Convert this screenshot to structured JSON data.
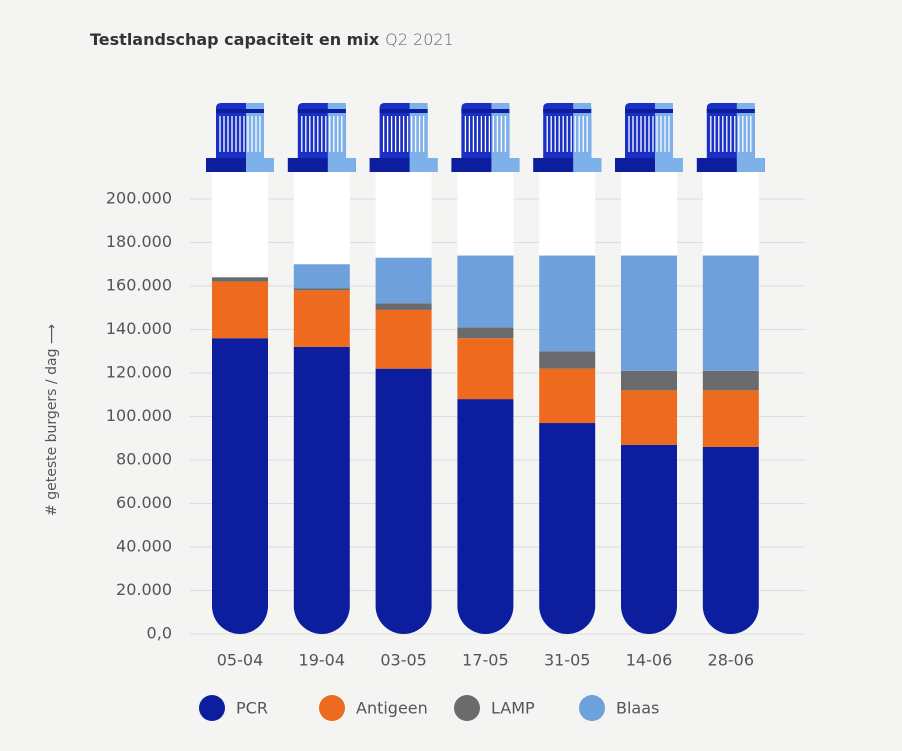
{
  "chart_data": {
    "type": "tube-stacked-bar",
    "title": "Testlandschap capaciteit en mix",
    "subtitle": "Q2 2021",
    "ylabel": "# geteste burgers / dag ⟶",
    "categories": [
      "05-04",
      "19-04",
      "03-05",
      "17-05",
      "31-05",
      "14-06",
      "28-06"
    ],
    "series": [
      {
        "name": "PCR",
        "color": "#0c1d9e",
        "values": [
          136000,
          132000,
          122000,
          108000,
          97000,
          87000,
          86000
        ]
      },
      {
        "name": "Antigeen",
        "color": "#ee6a1e",
        "values": [
          26000,
          26000,
          27000,
          28000,
          25000,
          25000,
          26000
        ]
      },
      {
        "name": "LAMP",
        "color": "#6b6b6d",
        "values": [
          2000,
          1000,
          3000,
          5000,
          8000,
          9000,
          9000
        ]
      },
      {
        "name": "Blaas",
        "color": "#6ea1dc",
        "values": [
          0,
          11000,
          21000,
          33000,
          44000,
          53000,
          53000
        ]
      }
    ],
    "ylim": [
      0,
      200000
    ],
    "yticks": [
      {
        "value": 0,
        "label": "0,0"
      },
      {
        "value": 20000,
        "label": "20.000"
      },
      {
        "value": 40000,
        "label": "40.000"
      },
      {
        "value": 60000,
        "label": "60.000"
      },
      {
        "value": 80000,
        "label": "80.000"
      },
      {
        "value": 100000,
        "label": "100.000"
      },
      {
        "value": 120000,
        "label": "120.000"
      },
      {
        "value": 140000,
        "label": "140.000"
      },
      {
        "value": 160000,
        "label": "160.000"
      },
      {
        "value": 180000,
        "label": "180.000"
      },
      {
        "value": 200000,
        "label": "200.000"
      }
    ],
    "grid": true
  }
}
